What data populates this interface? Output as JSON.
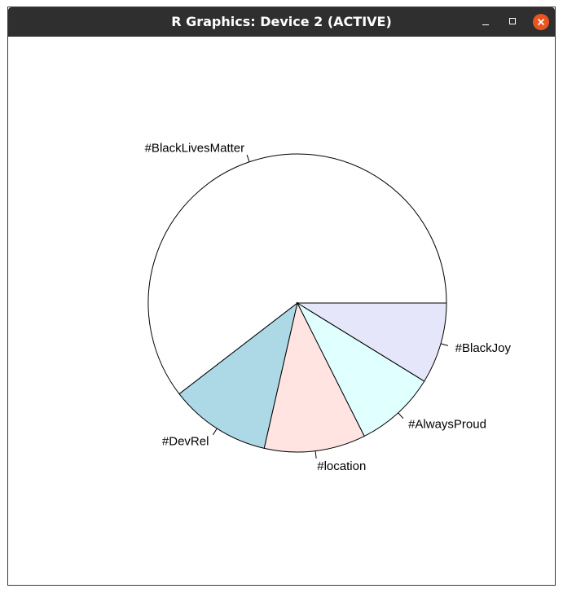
{
  "window": {
    "title": "R Graphics: Device 2 (ACTIVE)"
  },
  "icons": {
    "minimize": "minimize-icon",
    "maximize": "maximize-icon",
    "close": "close-icon"
  },
  "colors": {
    "titlebar": "#2f2f2f",
    "close_button": "#e95420",
    "outline": "#000000"
  },
  "chart_data": {
    "type": "pie",
    "start_angle_deg": 0,
    "direction": "counterclockwise",
    "slices": [
      {
        "label": "#BlackLivesMatter",
        "value": 55,
        "color": "#ffffff"
      },
      {
        "label": "#DevRel",
        "value": 10,
        "color": "#add8e6"
      },
      {
        "label": "#location",
        "value": 10,
        "color": "#ffe4e1"
      },
      {
        "label": "#AlwaysProud",
        "value": 8,
        "color": "#e0ffff"
      },
      {
        "label": "#BlackJoy",
        "value": 8,
        "color": "#e6e6fa"
      }
    ]
  }
}
